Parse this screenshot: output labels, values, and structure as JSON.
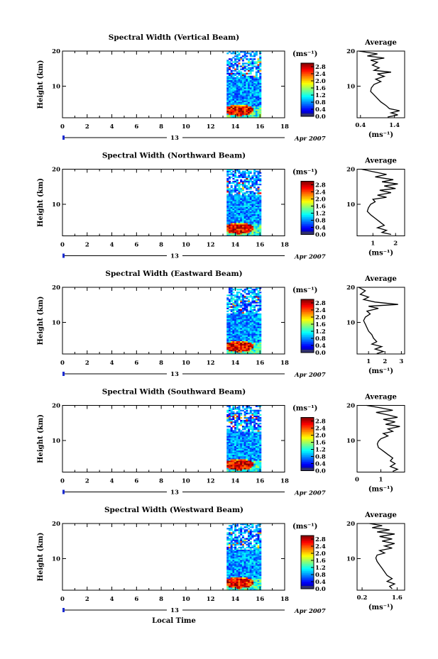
{
  "chart_data": [
    {
      "type": "heatmap",
      "title": "Spectral Width (Vertical Beam)",
      "ylabel": "Height (km)",
      "yticks": [
        "10",
        "20"
      ],
      "xticks": [
        "0",
        "2",
        "4",
        "6",
        "8",
        "10",
        "12",
        "14",
        "16",
        "18"
      ],
      "xlim": [
        0,
        18
      ],
      "ylim": [
        1,
        20
      ],
      "date_day": "13",
      "date_mon": "Apr 2007",
      "data_span": [
        13.3,
        16.1
      ],
      "colorbar": {
        "unit": "(ms⁻¹)",
        "ticks": [
          "2.8",
          "2.4",
          "2.0",
          "1.6",
          "1.2",
          "0.8",
          "0.4",
          "0.0"
        ],
        "range": [
          0,
          3
        ]
      },
      "average": {
        "title": "Average",
        "xlabel": "(ms⁻¹)",
        "xticks": [
          "0.4",
          "1.4"
        ],
        "xlim": [
          0.3,
          1.7
        ],
        "profile": [
          [
            0.35,
            20
          ],
          [
            0.9,
            19.2
          ],
          [
            0.6,
            18.6
          ],
          [
            1.1,
            18
          ],
          [
            0.7,
            17.4
          ],
          [
            0.9,
            16.8
          ],
          [
            0.75,
            16
          ],
          [
            0.95,
            15.2
          ],
          [
            0.8,
            14.5
          ],
          [
            1.3,
            14
          ],
          [
            0.9,
            13.5
          ],
          [
            1.1,
            12.8
          ],
          [
            0.85,
            12
          ],
          [
            1.0,
            11.3
          ],
          [
            0.8,
            10.5
          ],
          [
            0.72,
            9.5
          ],
          [
            0.7,
            8.5
          ],
          [
            0.8,
            7.5
          ],
          [
            0.9,
            6.5
          ],
          [
            1.0,
            5.5
          ],
          [
            1.15,
            4.5
          ],
          [
            1.25,
            3.6
          ],
          [
            1.55,
            3.0
          ],
          [
            1.3,
            2.4
          ],
          [
            1.5,
            1.8
          ],
          [
            1.2,
            1.2
          ]
        ]
      }
    },
    {
      "type": "heatmap",
      "title": "Spectral Width (Northward Beam)",
      "ylabel": "Height (km)",
      "yticks": [
        "10",
        "20"
      ],
      "xticks": [
        "0",
        "2",
        "4",
        "6",
        "8",
        "10",
        "12",
        "14",
        "16",
        "18"
      ],
      "xlim": [
        0,
        18
      ],
      "ylim": [
        1,
        20
      ],
      "date_day": "13",
      "date_mon": "Apr 2007",
      "data_span": [
        13.3,
        16.1
      ],
      "colorbar": {
        "unit": "(ms⁻¹)",
        "ticks": [
          "2.8",
          "2.4",
          "2.0",
          "1.6",
          "1.2",
          "0.8",
          "0.4",
          "0.0"
        ],
        "range": [
          0,
          3
        ]
      },
      "average": {
        "title": "Average",
        "xlabel": "(ms⁻¹)",
        "xticks": [
          "1",
          "2"
        ],
        "xlim": [
          0.3,
          2.4
        ],
        "profile": [
          [
            0.5,
            20
          ],
          [
            1.0,
            19.3
          ],
          [
            1.6,
            18.5
          ],
          [
            1.1,
            17.8
          ],
          [
            1.9,
            17
          ],
          [
            1.4,
            16.4
          ],
          [
            2.1,
            15.8
          ],
          [
            1.5,
            15.2
          ],
          [
            2.0,
            14.5
          ],
          [
            1.3,
            14
          ],
          [
            1.8,
            13.3
          ],
          [
            1.2,
            12.6
          ],
          [
            1.6,
            12
          ],
          [
            1.0,
            11.4
          ],
          [
            1.1,
            10.7
          ],
          [
            0.9,
            10
          ],
          [
            0.8,
            9
          ],
          [
            0.75,
            8
          ],
          [
            0.9,
            7
          ],
          [
            1.1,
            6
          ],
          [
            1.3,
            5
          ],
          [
            1.5,
            4
          ],
          [
            1.2,
            3.3
          ],
          [
            1.6,
            2.6
          ],
          [
            1.4,
            2
          ],
          [
            1.8,
            1.4
          ]
        ]
      }
    },
    {
      "type": "heatmap",
      "title": "Spectral Width (Eastward Beam)",
      "ylabel": "Height (km)",
      "yticks": [
        "10",
        "20"
      ],
      "xticks": [
        "0",
        "2",
        "4",
        "6",
        "8",
        "10",
        "12",
        "14",
        "16",
        "18"
      ],
      "xlim": [
        0,
        18
      ],
      "ylim": [
        1,
        20
      ],
      "date_day": "13",
      "date_mon": "Apr 2007",
      "data_span": [
        13.3,
        16.1
      ],
      "colorbar": {
        "unit": "(ms⁻¹)",
        "ticks": [
          "2.8",
          "2.4",
          "2.0",
          "1.6",
          "1.2",
          "0.8",
          "0.4",
          "0.0"
        ],
        "range": [
          0,
          3
        ]
      },
      "average": {
        "title": "Average",
        "xlabel": "(ms⁻¹)",
        "xticks": [
          "1",
          "2",
          "3"
        ],
        "xlim": [
          0.3,
          3.2
        ],
        "profile": [
          [
            0.4,
            20
          ],
          [
            0.8,
            19
          ],
          [
            0.5,
            18
          ],
          [
            1.0,
            17.2
          ],
          [
            0.7,
            16.5
          ],
          [
            1.4,
            15.8
          ],
          [
            2.8,
            15.1
          ],
          [
            1.0,
            14.6
          ],
          [
            1.6,
            14
          ],
          [
            0.9,
            13.2
          ],
          [
            1.1,
            12.4
          ],
          [
            0.8,
            11.5
          ],
          [
            0.7,
            10.5
          ],
          [
            0.8,
            9.5
          ],
          [
            0.9,
            8.5
          ],
          [
            1.0,
            7.5
          ],
          [
            1.2,
            6.5
          ],
          [
            1.3,
            5.5
          ],
          [
            1.5,
            4.5
          ],
          [
            1.2,
            3.8
          ],
          [
            1.8,
            3.1
          ],
          [
            1.4,
            2.4
          ],
          [
            1.9,
            1.7
          ],
          [
            1.5,
            1.1
          ]
        ]
      }
    },
    {
      "type": "heatmap",
      "title": "Spectral Width (Southward Beam)",
      "ylabel": "Height (km)",
      "yticks": [
        "10",
        "20"
      ],
      "xticks": [
        "0",
        "2",
        "4",
        "6",
        "8",
        "10",
        "12",
        "14",
        "16",
        "18"
      ],
      "xlim": [
        0,
        18
      ],
      "ylim": [
        1,
        20
      ],
      "date_day": "13",
      "date_mon": "Apr 2007",
      "data_span": [
        13.3,
        16.1
      ],
      "colorbar": {
        "unit": "(ms⁻¹)",
        "ticks": [
          "2.8",
          "2.4",
          "2.0",
          "1.6",
          "1.2",
          "0.8",
          "0.4",
          "0.0"
        ],
        "range": [
          0,
          3
        ]
      },
      "average": {
        "title": "Average",
        "xlabel": "(ms⁻¹)",
        "xticks": [
          "0",
          "1"
        ],
        "xlim": [
          0,
          2
        ],
        "profile": [
          [
            0.4,
            20
          ],
          [
            1.0,
            19.3
          ],
          [
            1.5,
            18.6
          ],
          [
            0.8,
            18
          ],
          [
            1.3,
            17.3
          ],
          [
            1.7,
            16.6
          ],
          [
            1.1,
            16
          ],
          [
            1.6,
            15.3
          ],
          [
            1.2,
            14.6
          ],
          [
            1.8,
            14
          ],
          [
            1.3,
            13.3
          ],
          [
            1.5,
            12.6
          ],
          [
            1.1,
            12
          ],
          [
            1.3,
            11.3
          ],
          [
            1.0,
            10.5
          ],
          [
            0.9,
            9.8
          ],
          [
            0.85,
            9
          ],
          [
            0.9,
            8
          ],
          [
            1.1,
            7
          ],
          [
            1.3,
            6
          ],
          [
            1.5,
            5
          ],
          [
            1.4,
            4.2
          ],
          [
            1.6,
            3.4
          ],
          [
            1.4,
            2.6
          ],
          [
            1.7,
            1.8
          ],
          [
            1.5,
            1.2
          ]
        ]
      }
    },
    {
      "type": "heatmap",
      "title": "Spectral Width (Westward Beam)",
      "ylabel": "Height (km)",
      "yticks": [
        "10",
        "20"
      ],
      "xticks": [
        "0",
        "2",
        "4",
        "6",
        "8",
        "10",
        "12",
        "14",
        "16",
        "18"
      ],
      "xlim": [
        0,
        18
      ],
      "ylim": [
        1,
        20
      ],
      "date_day": "13",
      "date_mon": "Apr 2007",
      "data_span": [
        13.3,
        16.1
      ],
      "colorbar": {
        "unit": "(ms⁻¹)",
        "ticks": [
          "2.8",
          "2.4",
          "2.0",
          "1.6",
          "1.2",
          "0.8",
          "0.4",
          "0.0"
        ],
        "range": [
          0,
          3
        ]
      },
      "average": {
        "title": "Average",
        "xlabel": "(ms⁻¹)",
        "xticks": [
          "0.2",
          "1.6"
        ],
        "xlim": [
          0,
          1.9
        ],
        "profile": [
          [
            0.5,
            20
          ],
          [
            1.0,
            19.4
          ],
          [
            0.6,
            18.8
          ],
          [
            1.3,
            18.2
          ],
          [
            0.8,
            17.6
          ],
          [
            1.5,
            17
          ],
          [
            0.9,
            16.3
          ],
          [
            1.4,
            15.6
          ],
          [
            1.0,
            15
          ],
          [
            1.5,
            14.3
          ],
          [
            1.1,
            13.6
          ],
          [
            1.4,
            13
          ],
          [
            0.9,
            12.3
          ],
          [
            1.1,
            11.6
          ],
          [
            0.8,
            11
          ],
          [
            0.75,
            10.2
          ],
          [
            0.8,
            9.2
          ],
          [
            0.9,
            8.2
          ],
          [
            1.0,
            7.2
          ],
          [
            1.1,
            6.2
          ],
          [
            1.2,
            5.2
          ],
          [
            1.4,
            4.3
          ],
          [
            1.2,
            3.5
          ],
          [
            1.5,
            2.8
          ],
          [
            1.3,
            2.1
          ],
          [
            1.4,
            1.4
          ]
        ]
      }
    }
  ],
  "footer": {
    "xlabel": "Local Time"
  }
}
